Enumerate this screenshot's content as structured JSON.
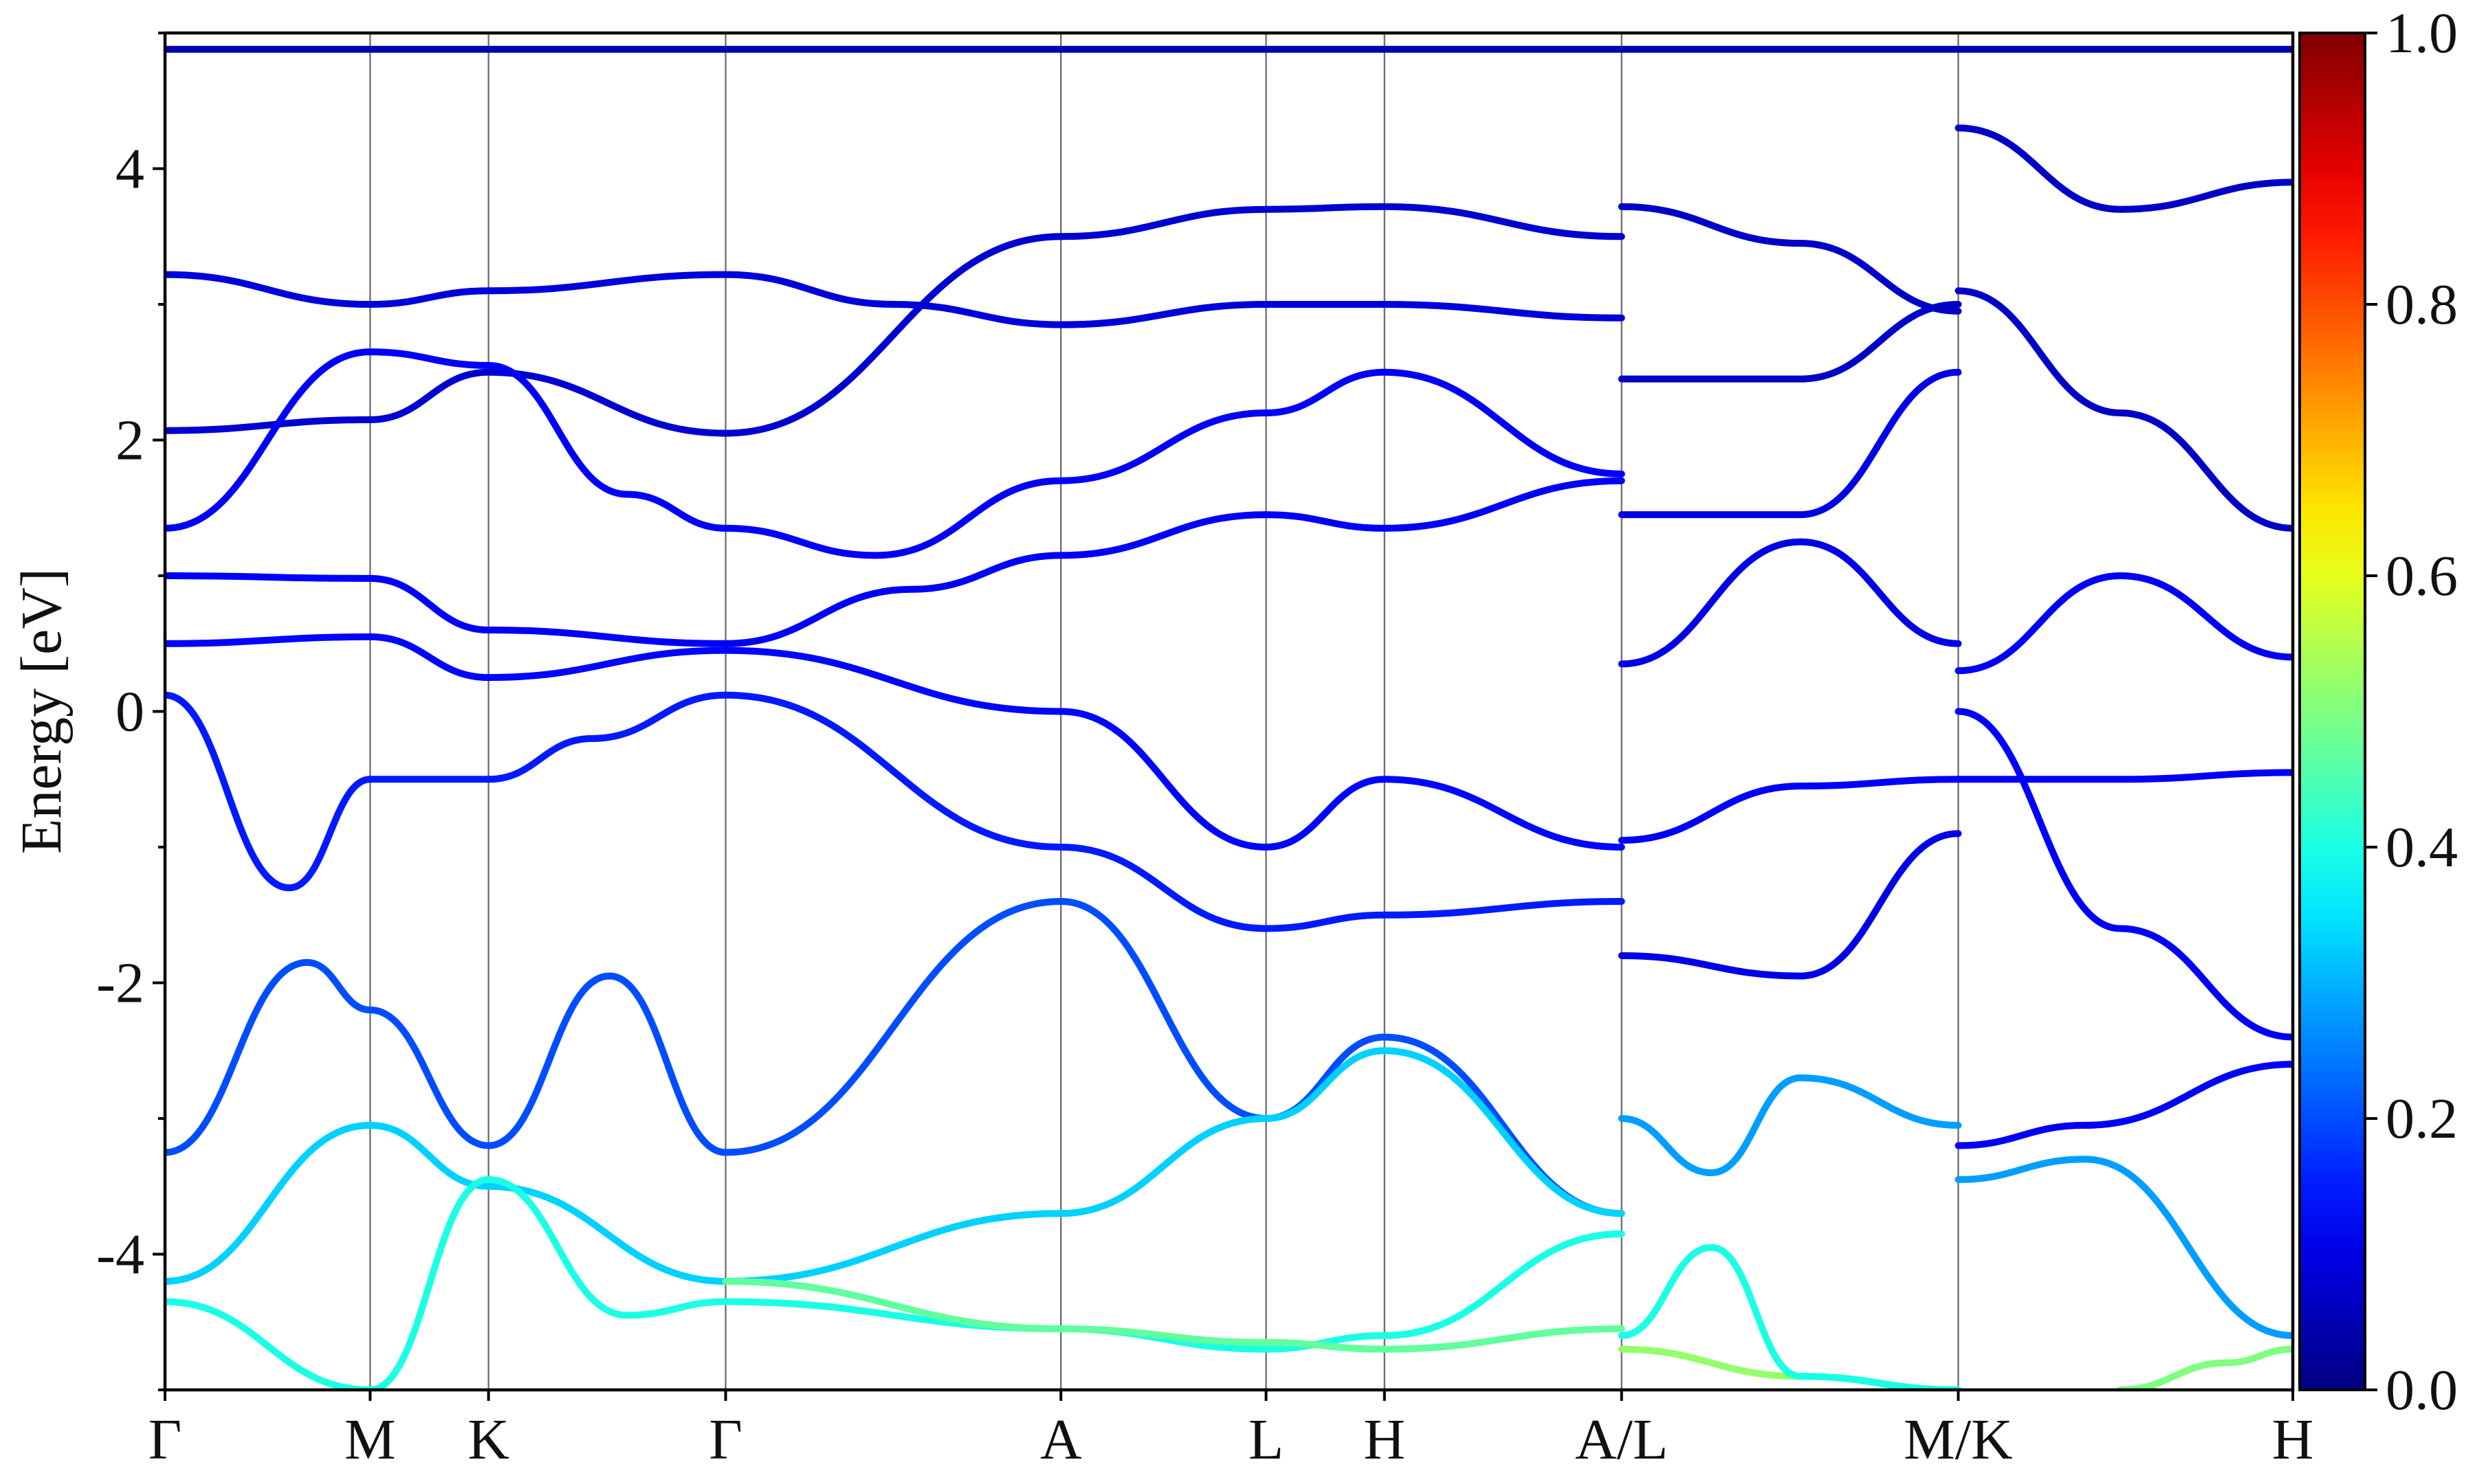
{
  "chart_data": {
    "type": "line",
    "title": "",
    "xlabel": "",
    "ylabel": "Energy [eV]",
    "ylim": [
      -5,
      5
    ],
    "yticks": [
      -4,
      -2,
      0,
      2,
      4
    ],
    "grid": false,
    "kpath": {
      "labels": [
        "Γ",
        "M",
        "K",
        "Γ",
        "A",
        "L",
        "H",
        "A/L",
        "M/K",
        "H"
      ],
      "positions": [
        0.0,
        0.577,
        0.91,
        1.577,
        2.52,
        3.097,
        3.43,
        4.097,
        5.044,
        5.985
      ]
    },
    "xlim": [
      0.0,
      5.985
    ],
    "colorbar": {
      "colormap": "jet",
      "range": [
        0.0,
        1.0
      ],
      "ticks": [
        "0.0",
        "0.2",
        "0.4",
        "0.6",
        "0.8",
        "1.0"
      ],
      "colors": [
        "#000080",
        "#0000ff",
        "#00ffff",
        "#ffff00",
        "#ff0000",
        "#800000"
      ]
    },
    "series": [
      {
        "c": 0.05,
        "x": [
          0.0,
          5.985
        ],
        "y": [
          4.88,
          4.88
        ]
      },
      {
        "c": 0.09,
        "x": [
          0.0,
          0.577,
          0.91,
          1.577,
          2.05,
          2.52,
          3.097,
          3.43,
          4.097
        ],
        "y": [
          3.22,
          3.0,
          3.1,
          3.22,
          3.0,
          2.85,
          3.0,
          3.0,
          2.9
        ]
      },
      {
        "c": 0.08,
        "x": [
          0.0,
          0.577,
          0.91,
          1.577,
          2.52,
          3.097,
          3.43,
          4.097
        ],
        "y": [
          2.07,
          2.15,
          2.5,
          2.05,
          3.5,
          3.7,
          3.72,
          3.5
        ]
      },
      {
        "c": 0.12,
        "x": [
          0.0,
          0.577,
          0.91,
          1.3,
          1.577,
          2.0,
          2.52,
          3.097,
          3.43,
          4.097
        ],
        "y": [
          1.35,
          2.65,
          2.55,
          1.6,
          1.35,
          1.15,
          1.7,
          2.2,
          2.5,
          1.75
        ]
      },
      {
        "c": 0.12,
        "x": [
          0.0,
          0.577,
          0.91,
          1.577,
          2.1,
          2.52,
          3.097,
          3.43,
          4.097
        ],
        "y": [
          1.0,
          0.98,
          0.6,
          0.5,
          0.9,
          1.15,
          1.45,
          1.35,
          1.7
        ]
      },
      {
        "c": 0.13,
        "x": [
          0.0,
          0.577,
          0.91,
          1.577,
          2.52,
          3.097,
          3.43,
          4.097
        ],
        "y": [
          0.5,
          0.55,
          0.25,
          0.45,
          0.0,
          -1.0,
          -0.5,
          -1.0
        ]
      },
      {
        "c": 0.15,
        "x": [
          0.0,
          0.35,
          0.577,
          0.91,
          1.2,
          1.577,
          2.52,
          3.097,
          3.43,
          4.097
        ],
        "y": [
          0.12,
          -1.3,
          -0.5,
          -0.5,
          -0.2,
          0.12,
          -1.0,
          -1.6,
          -1.5,
          -1.4
        ]
      },
      {
        "c": 0.2,
        "x": [
          0.0,
          0.4,
          0.577,
          0.91,
          1.25,
          1.577,
          2.52,
          3.097,
          3.43,
          4.097
        ],
        "y": [
          -3.25,
          -1.85,
          -2.2,
          -3.2,
          -1.95,
          -3.25,
          -1.4,
          -3.0,
          -2.4,
          -3.7
        ]
      },
      {
        "c": 0.33,
        "x": [
          0.0,
          0.577,
          0.91,
          1.577,
          2.52,
          3.097,
          3.43,
          4.097
        ],
        "y": [
          -4.2,
          -3.05,
          -3.5,
          -4.2,
          -3.7,
          -3.0,
          -2.5,
          -3.7
        ]
      },
      {
        "c": 0.4,
        "x": [
          0.0,
          0.577,
          0.91,
          1.3,
          1.577,
          2.52,
          3.097,
          3.43,
          4.097
        ],
        "y": [
          -4.35,
          -5.0,
          -3.45,
          -4.45,
          -4.35,
          -4.55,
          -4.7,
          -4.6,
          -3.85
        ]
      },
      {
        "c": 0.47,
        "x": [
          1.577,
          2.52,
          3.097,
          3.43,
          4.097
        ],
        "y": [
          -4.2,
          -4.55,
          -4.65,
          -4.7,
          -4.55
        ]
      },
      {
        "c": 0.52,
        "x": [
          4.097,
          4.6,
          5.044
        ],
        "y": [
          -4.7,
          -4.9,
          -5.0
        ]
      },
      {
        "c": 0.28,
        "x": [
          4.097,
          4.35,
          4.6,
          5.044
        ],
        "y": [
          -3.0,
          -3.4,
          -2.7,
          -3.05
        ]
      },
      {
        "c": 0.4,
        "x": [
          4.097,
          4.35,
          4.6,
          5.044
        ],
        "y": [
          -4.6,
          -3.95,
          -4.9,
          -5.0
        ]
      },
      {
        "c": 0.1,
        "x": [
          4.097,
          4.6,
          5.044
        ],
        "y": [
          -1.8,
          -1.95,
          -0.9
        ]
      },
      {
        "c": 0.12,
        "x": [
          4.097,
          4.6,
          5.044
        ],
        "y": [
          -0.95,
          -0.55,
          -0.5
        ]
      },
      {
        "c": 0.1,
        "x": [
          4.097,
          4.6,
          5.044
        ],
        "y": [
          0.35,
          1.25,
          0.5
        ]
      },
      {
        "c": 0.1,
        "x": [
          4.097,
          4.6,
          5.044
        ],
        "y": [
          1.45,
          1.45,
          2.5
        ]
      },
      {
        "c": 0.07,
        "x": [
          4.097,
          4.6,
          5.044
        ],
        "y": [
          2.45,
          2.45,
          3.0
        ]
      },
      {
        "c": 0.07,
        "x": [
          4.097,
          4.6,
          5.044
        ],
        "y": [
          3.72,
          3.45,
          2.95
        ]
      },
      {
        "c": 0.12,
        "x": [
          5.044,
          5.4,
          5.985
        ],
        "y": [
          -3.2,
          -3.05,
          -2.6
        ]
      },
      {
        "c": 0.28,
        "x": [
          5.044,
          5.4,
          5.985
        ],
        "y": [
          -3.45,
          -3.3,
          -4.6
        ]
      },
      {
        "c": 0.12,
        "x": [
          5.044,
          5.5,
          5.985
        ],
        "y": [
          0.0,
          -1.6,
          -2.4
        ]
      },
      {
        "c": 0.12,
        "x": [
          5.044,
          5.5,
          5.985
        ],
        "y": [
          0.3,
          1.0,
          0.4
        ]
      },
      {
        "c": 0.12,
        "x": [
          5.044,
          5.5,
          5.985
        ],
        "y": [
          -0.5,
          -0.5,
          -0.45
        ]
      },
      {
        "c": 0.07,
        "x": [
          5.044,
          5.5,
          5.985
        ],
        "y": [
          3.1,
          2.2,
          1.35
        ]
      },
      {
        "c": 0.07,
        "x": [
          5.044,
          5.5,
          5.985
        ],
        "y": [
          4.3,
          3.7,
          3.9
        ]
      },
      {
        "c": 0.5,
        "x": [
          5.5,
          5.8,
          5.985
        ],
        "y": [
          -5.0,
          -4.8,
          -4.7
        ]
      }
    ]
  }
}
